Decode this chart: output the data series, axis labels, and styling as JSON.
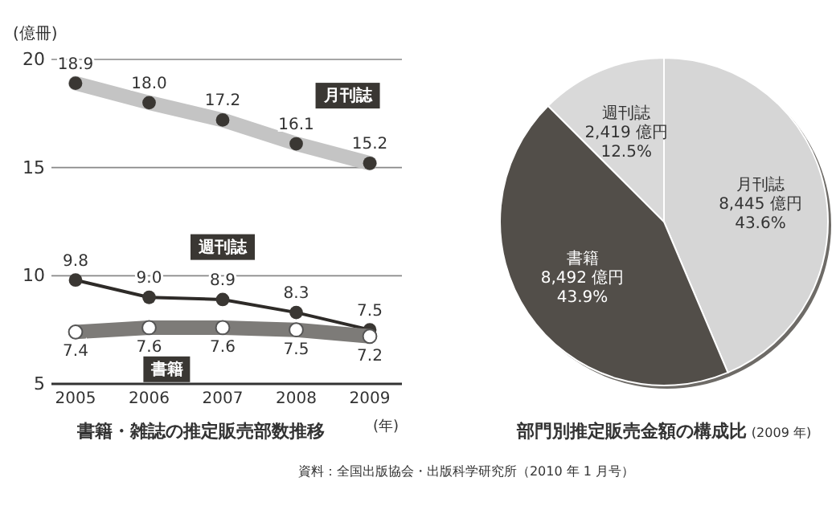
{
  "chart_data": [
    {
      "type": "line",
      "title": "書籍・雑誌の推定販売部数推移",
      "xlabel": "(年)",
      "ylabel": "(億冊)",
      "categories": [
        "2005",
        "2006",
        "2007",
        "2008",
        "2009"
      ],
      "series": [
        {
          "name": "月刊誌",
          "color": "#c4c4c4",
          "values": [
            18.9,
            18.0,
            17.2,
            16.1,
            15.2
          ],
          "value_labels": [
            "18.9",
            "18.0",
            "17.2",
            "16.1",
            "15.2"
          ]
        },
        {
          "name": "週刊誌",
          "color": "#2e2b28",
          "values": [
            9.8,
            9.0,
            8.9,
            8.3,
            7.5
          ],
          "value_labels": [
            "9.8",
            "9.0",
            "8.9",
            "8.3",
            "7.5"
          ]
        },
        {
          "name": "書籍",
          "color": "#7d7b78",
          "values": [
            7.4,
            7.6,
            7.6,
            7.5,
            7.2
          ],
          "value_labels": [
            "7.4",
            "7.6",
            "7.6",
            "7.5",
            "7.2"
          ]
        }
      ],
      "ylim": [
        5,
        20
      ],
      "yticks": [
        5,
        10,
        15,
        20
      ],
      "grid": "y",
      "marker": "circle"
    },
    {
      "type": "pie",
      "title": "部門別推定販売金額の構成比",
      "subtitle": "(2009 年)",
      "categories": [
        "月刊誌",
        "書籍",
        "週刊誌"
      ],
      "values": [
        8445,
        8492,
        2419
      ],
      "colors": [
        "#d6d6d6",
        "#524e49",
        "#d9d9d9"
      ],
      "value_labels": [
        "8,445 億円\n43.6%",
        "8,492 億円\n43.9%",
        "2,419 億円\n12.5%"
      ],
      "annotations": [
        "資料：全国出版協会・出版科学研究所（2010 年 1 月号）"
      ]
    }
  ]
}
